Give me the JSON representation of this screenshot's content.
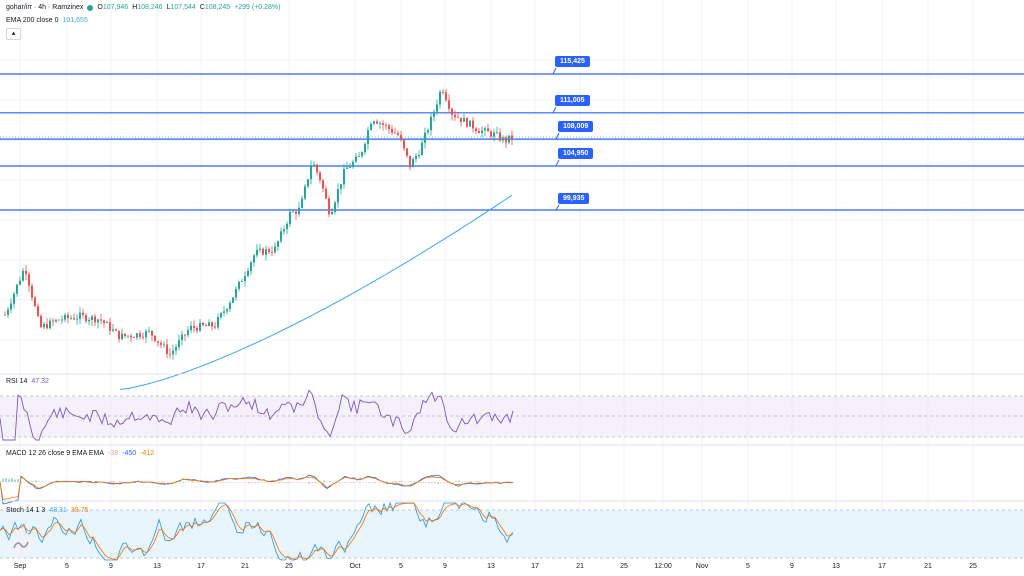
{
  "header": {
    "symbol": "gohar/irr · 4h · Ramzinex",
    "open_label": "O",
    "open": "107,946",
    "high_label": "H",
    "high": "108,246",
    "low_label": "L",
    "low": "107,544",
    "close_label": "C",
    "close": "108,245",
    "change": "+299 (+0.28%)"
  },
  "ema": {
    "label": "EMA 200 close 0",
    "value": "101,655"
  },
  "levels": [
    "115,425",
    "111,005",
    "108,009",
    "104,950",
    "99,935"
  ],
  "rsi": {
    "label": "RSI 14",
    "value": "47.32"
  },
  "macd": {
    "label": "MACD 12 26 close 9 EMA EMA",
    "v1": "-38",
    "v2": "-450",
    "v3": "-412"
  },
  "stoch": {
    "label": "Stoch 14 1 3",
    "k": "48.31",
    "d": "39.75"
  },
  "x_axis": [
    "Sep",
    "5",
    "9",
    "13",
    "17",
    "21",
    "25",
    "Oct",
    "5",
    "9",
    "13",
    "17",
    "21",
    "25",
    "12:00",
    "Nov",
    "5",
    "9",
    "13",
    "17",
    "21",
    "25"
  ],
  "colors": {
    "up": "#26a69a",
    "down": "#ef5350",
    "level": "#2962ff",
    "ema": "#42a5f5",
    "rsi": "#7e57c2",
    "macd": "#2962ff",
    "signal": "#f57c00"
  },
  "icons": {
    "collapse": "chevron-up-icon",
    "logo": "tradingview-logo-icon"
  }
}
